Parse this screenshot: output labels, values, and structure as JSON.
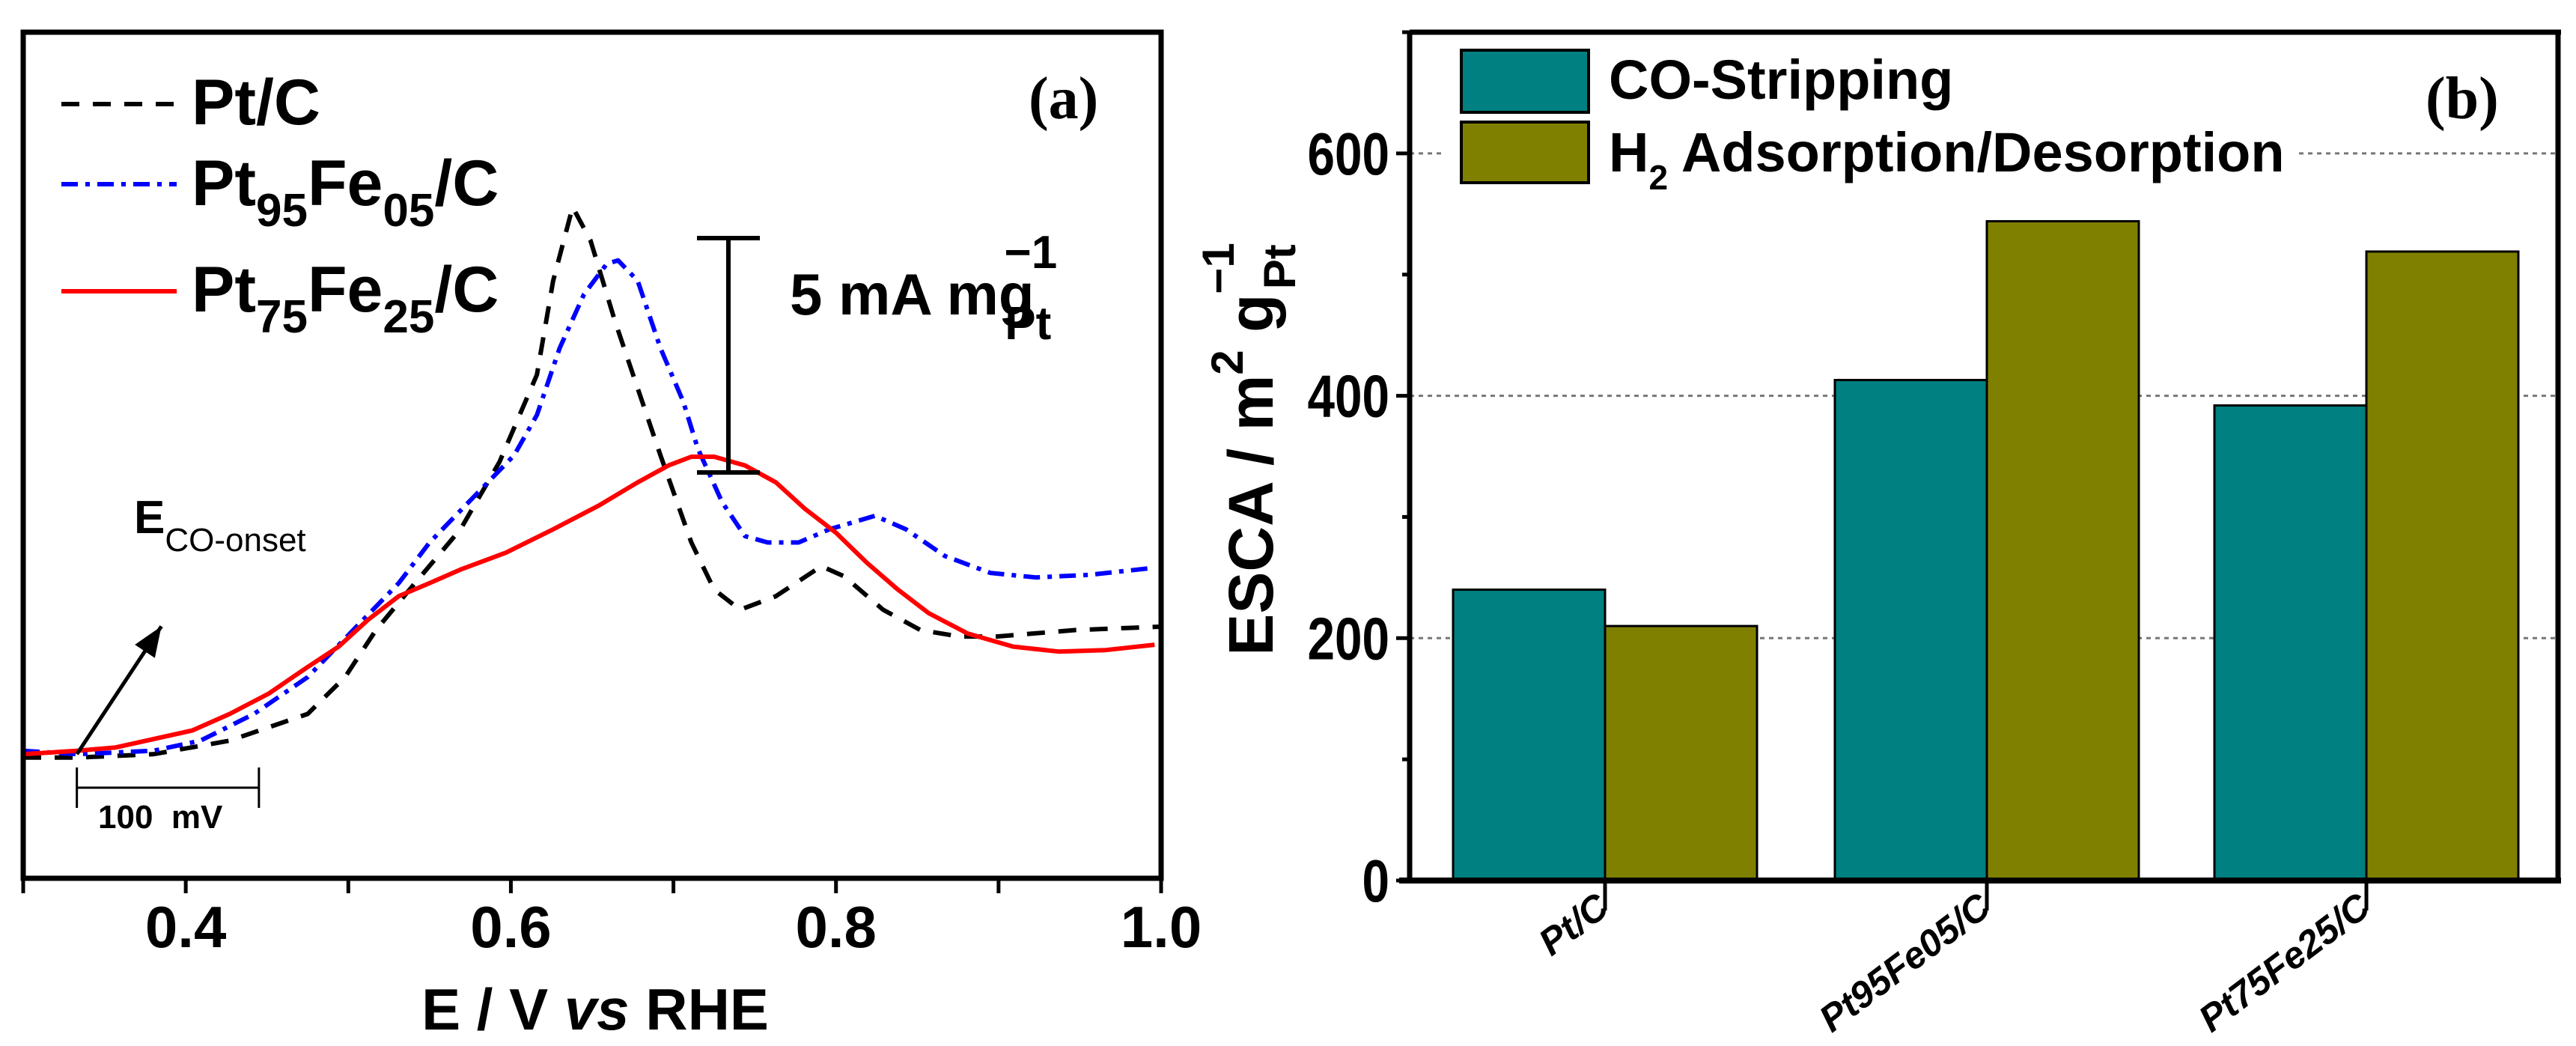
{
  "chart_data": [
    {
      "type": "line",
      "panel_label": "(a)",
      "xlabel_parts": [
        "E / V ",
        "vs",
        " RHE"
      ],
      "ylabel": "",
      "xlim": [
        0.3,
        1.0
      ],
      "x_ticks": [
        "0.4",
        "0.6",
        "0.8",
        "1.0"
      ],
      "x_tick_values": [
        0.4,
        0.6,
        0.8,
        1.0
      ],
      "ylim": [
        -3.3,
        19.2
      ],
      "grid": false,
      "legend_position": "top-left",
      "scale_bar": {
        "value": 5,
        "label": "5 mA mg",
        "sup": "−1",
        "sub": "Pt"
      },
      "annotation": {
        "main": "E",
        "sub": "CO-onset"
      },
      "potential_bar": {
        "label": "100  mV",
        "from": 0.333,
        "to": 0.445
      },
      "onset_arrow": {
        "from": [
          0.333,
          0.0
        ],
        "to": [
          0.385,
          3.4
        ]
      },
      "series": [
        {
          "name_parts": [
            "Pt",
            "",
            "",
            "/C"
          ],
          "name_plain": "Pt/C",
          "color": "#000000",
          "dash": "dashed",
          "x": [
            0.3,
            0.333,
            0.38,
            0.427,
            0.475,
            0.498,
            0.517,
            0.541,
            0.569,
            0.593,
            0.616,
            0.626,
            0.638,
            0.649,
            0.664,
            0.678,
            0.692,
            0.711,
            0.725,
            0.741,
            0.763,
            0.791,
            0.805,
            0.829,
            0.852,
            0.876,
            0.899,
            0.947,
            0.999
          ],
          "y": [
            -0.09,
            -0.09,
            0.0,
            0.36,
            1.07,
            2.05,
            3.3,
            4.55,
            5.98,
            7.77,
            10.09,
            12.59,
            14.55,
            13.66,
            11.52,
            9.73,
            7.95,
            5.63,
            4.38,
            3.84,
            4.2,
            5.0,
            4.73,
            3.84,
            3.3,
            3.13,
            3.13,
            3.3,
            3.39
          ]
        },
        {
          "name_parts": [
            "Pt",
            "95",
            "Fe",
            "05",
            "/C"
          ],
          "name_plain": "Pt95Fe05/C",
          "color": "#0000ff",
          "dash": "dash-dot",
          "x": [
            0.3,
            0.333,
            0.38,
            0.409,
            0.442,
            0.475,
            0.503,
            0.531,
            0.55,
            0.578,
            0.602,
            0.616,
            0.63,
            0.645,
            0.659,
            0.666,
            0.678,
            0.692,
            0.706,
            0.715,
            0.73,
            0.744,
            0.758,
            0.777,
            0.796,
            0.824,
            0.843,
            0.867,
            0.895,
            0.923,
            0.956,
            0.994
          ],
          "y": [
            0.09,
            0.0,
            0.09,
            0.36,
            1.07,
            2.05,
            3.3,
            4.55,
            5.63,
            6.88,
            7.95,
            9.02,
            10.8,
            12.23,
            13.04,
            13.13,
            12.59,
            10.8,
            9.38,
            8.13,
            6.7,
            5.8,
            5.63,
            5.63,
            5.98,
            6.34,
            5.98,
            5.27,
            4.82,
            4.7,
            4.77,
            4.95
          ]
        },
        {
          "name_parts": [
            "Pt",
            "75",
            "Fe",
            "25",
            "/C"
          ],
          "name_plain": "Pt75Fe25/C",
          "color": "#ff0000",
          "dash": "solid",
          "x": [
            0.3,
            0.333,
            0.357,
            0.404,
            0.427,
            0.451,
            0.475,
            0.494,
            0.512,
            0.531,
            0.55,
            0.569,
            0.597,
            0.626,
            0.654,
            0.678,
            0.697,
            0.711,
            0.725,
            0.744,
            0.763,
            0.781,
            0.8,
            0.819,
            0.838,
            0.857,
            0.881,
            0.909,
            0.937,
            0.966,
            0.996
          ],
          "y": [
            0.0,
            0.09,
            0.18,
            0.63,
            1.07,
            1.61,
            2.32,
            2.86,
            3.57,
            4.2,
            4.55,
            4.91,
            5.36,
            5.98,
            6.61,
            7.23,
            7.68,
            7.91,
            7.91,
            7.68,
            7.23,
            6.52,
            5.89,
            5.09,
            4.38,
            3.75,
            3.21,
            2.86,
            2.73,
            2.77,
            2.91
          ]
        }
      ]
    },
    {
      "type": "bar",
      "panel_label": "(b)",
      "categories": [
        "Pt/C",
        "Pt95Fe05/C",
        "Pt75Fe25/C"
      ],
      "ylabel": {
        "main": "ESCA / m",
        "sup1": "2",
        "g": " g",
        "sup2": "−1",
        "sub": "Pt"
      },
      "ylim": [
        0,
        700
      ],
      "y_ticks": [
        "0",
        "200",
        "400",
        "600"
      ],
      "y_tick_values": [
        0,
        200,
        400,
        600
      ],
      "grid": true,
      "legend_position": "top-left",
      "series": [
        {
          "name": "CO-Stripping",
          "color": "#008080",
          "values": [
            240,
            413,
            392
          ]
        },
        {
          "name": "H2 Adsorption/Desorption",
          "name_main": "H",
          "name_sub": "2",
          "name_rest": " Adsorption/Desorption",
          "color": "#808000",
          "values": [
            210,
            544,
            519
          ]
        }
      ]
    }
  ]
}
